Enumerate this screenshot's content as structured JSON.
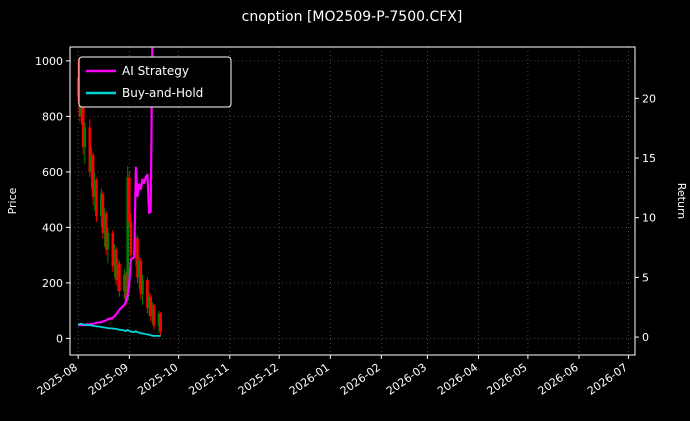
{
  "window": {
    "title": "cnoption [MO2509-P-7500.CFX]"
  },
  "chart_data": {
    "type": "candlestick",
    "title": "cnoption [MO2509-P-7500.CFX]",
    "xlabel": "",
    "ylabel_left": "Price",
    "ylabel_right": "Return",
    "grid": true,
    "legend_position": "upper-left",
    "x_tick_labels": [
      "2025-08",
      "2025-09",
      "2025-10",
      "2025-11",
      "2025-12",
      "2026-01",
      "2026-02",
      "2026-03",
      "2026-04",
      "2026-05",
      "2026-06",
      "2026-07"
    ],
    "x_tick_days": [
      5,
      36,
      66,
      97,
      127,
      158,
      189,
      217,
      248,
      278,
      309,
      339
    ],
    "x_domain_days": [
      0,
      343
    ],
    "price_ticks": [
      0,
      200,
      400,
      600,
      800,
      1000
    ],
    "price_ylim": [
      -60,
      1050
    ],
    "return_ticks": [
      0,
      5,
      10,
      15,
      20
    ],
    "return_ylim": [
      -1.5,
      24.3
    ],
    "colors": {
      "background": "#000000",
      "text": "#ffffff",
      "grid": "#5a5a5a",
      "spine": "#ffffff",
      "candle_up": "#008000",
      "candle_down": "#ff0000"
    },
    "legend": [
      {
        "label": "AI Strategy",
        "color": "#ff00ff"
      },
      {
        "label": "Buy-and-Hold",
        "color": "#00d4d4"
      }
    ],
    "candles": [
      [
        5,
        940,
        1005,
        850,
        870
      ],
      [
        6,
        870,
        930,
        780,
        800
      ],
      [
        7,
        800,
        880,
        770,
        860
      ],
      [
        8,
        860,
        870,
        660,
        690
      ],
      [
        9,
        690,
        780,
        630,
        760
      ],
      [
        12,
        760,
        790,
        580,
        600
      ],
      [
        13,
        600,
        690,
        540,
        660
      ],
      [
        14,
        660,
        670,
        480,
        510
      ],
      [
        15,
        510,
        600,
        460,
        570
      ],
      [
        16,
        570,
        580,
        420,
        440
      ],
      [
        19,
        440,
        540,
        400,
        520
      ],
      [
        20,
        520,
        530,
        360,
        380
      ],
      [
        21,
        380,
        470,
        330,
        450
      ],
      [
        22,
        450,
        460,
        300,
        320
      ],
      [
        23,
        320,
        400,
        270,
        380
      ],
      [
        26,
        380,
        390,
        240,
        260
      ],
      [
        27,
        260,
        340,
        220,
        320
      ],
      [
        28,
        320,
        330,
        190,
        210
      ],
      [
        29,
        210,
        290,
        170,
        270
      ],
      [
        30,
        270,
        280,
        150,
        170
      ],
      [
        33,
        170,
        250,
        140,
        230
      ],
      [
        34,
        230,
        240,
        120,
        140
      ],
      [
        35,
        140,
        620,
        130,
        580
      ],
      [
        36,
        580,
        600,
        400,
        420
      ],
      [
        37,
        420,
        450,
        280,
        300
      ],
      [
        40,
        300,
        380,
        260,
        360
      ],
      [
        41,
        360,
        370,
        200,
        220
      ],
      [
        42,
        220,
        300,
        180,
        280
      ],
      [
        43,
        280,
        290,
        140,
        160
      ],
      [
        44,
        160,
        230,
        120,
        210
      ],
      [
        47,
        210,
        220,
        90,
        110
      ],
      [
        48,
        110,
        170,
        80,
        150
      ],
      [
        49,
        150,
        160,
        60,
        80
      ],
      [
        50,
        80,
        130,
        50,
        120
      ],
      [
        51,
        120,
        125,
        30,
        45
      ],
      [
        54,
        45,
        100,
        20,
        90
      ],
      [
        55,
        90,
        95,
        10,
        25
      ]
    ],
    "series": [
      {
        "name": "AI Strategy",
        "axis": "return",
        "color": "#ff00ff",
        "x": [
          5,
          6,
          7,
          8,
          9,
          12,
          13,
          14,
          15,
          16,
          19,
          20,
          21,
          22,
          23,
          26,
          27,
          28,
          29,
          30,
          33,
          34,
          35,
          36,
          37,
          38,
          39,
          40,
          41,
          42,
          43,
          44,
          45,
          46,
          47,
          48,
          49,
          50
        ],
        "y": [
          1.0,
          1.0,
          1.02,
          1.0,
          1.05,
          1.08,
          1.1,
          1.1,
          1.15,
          1.2,
          1.25,
          1.3,
          1.35,
          1.4,
          1.5,
          1.6,
          1.75,
          1.9,
          2.1,
          2.3,
          2.7,
          3.0,
          3.5,
          4.5,
          6.5,
          6.6,
          6.7,
          14.2,
          11.8,
          12.8,
          12.4,
          13.2,
          12.9,
          13.4,
          13.6,
          10.4,
          10.5,
          25.0
        ]
      },
      {
        "name": "Buy-and-Hold",
        "axis": "return",
        "color": "#00d4d4",
        "x": [
          5,
          6,
          7,
          8,
          9,
          12,
          13,
          14,
          15,
          16,
          19,
          20,
          21,
          22,
          23,
          26,
          27,
          28,
          29,
          30,
          33,
          34,
          35,
          36,
          37,
          38,
          39,
          40,
          41,
          42,
          43,
          44,
          45,
          46,
          47,
          48,
          49,
          50,
          51,
          54,
          55
        ],
        "y": [
          1.0,
          1.1,
          1.12,
          1.05,
          1.02,
          1.0,
          0.98,
          0.95,
          0.92,
          0.9,
          0.85,
          0.82,
          0.8,
          0.78,
          0.75,
          0.72,
          0.7,
          0.68,
          0.65,
          0.62,
          0.55,
          0.5,
          0.6,
          0.52,
          0.45,
          0.44,
          0.42,
          0.5,
          0.4,
          0.38,
          0.32,
          0.3,
          0.28,
          0.25,
          0.22,
          0.2,
          0.15,
          0.12,
          0.1,
          0.1,
          0.08
        ]
      }
    ]
  }
}
